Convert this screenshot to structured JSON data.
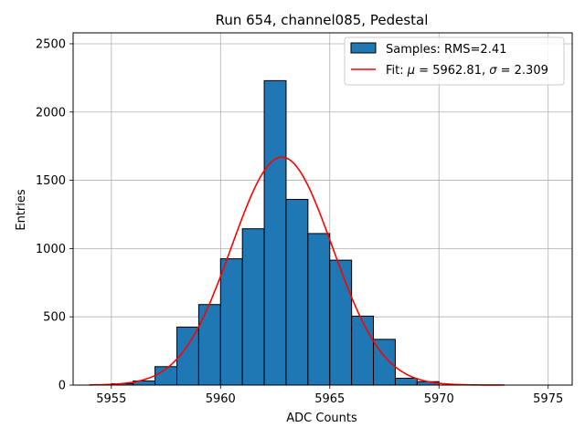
{
  "chart_data": {
    "type": "bar",
    "title": "Run 654, channel085, Pedestal",
    "xlabel": "ADC Counts",
    "ylabel": "Entries",
    "xlim": [
      5953.25,
      5976.1
    ],
    "ylim": [
      0,
      2580
    ],
    "xticks": [
      5955,
      5960,
      5965,
      5970,
      5975
    ],
    "yticks": [
      0,
      500,
      1000,
      1500,
      2000,
      2500
    ],
    "grid": true,
    "legend_position": "top-right",
    "histogram": {
      "name": "Samples: RMS=2.41",
      "color": "#1f77b4",
      "bin_edges": [
        5955,
        5956,
        5957,
        5958,
        5959,
        5960,
        5961,
        5962,
        5963,
        5964,
        5965,
        5966,
        5967,
        5968,
        5969,
        5970
      ],
      "counts": [
        10,
        30,
        135,
        425,
        590,
        925,
        1145,
        2230,
        1360,
        1110,
        915,
        505,
        335,
        50,
        25
      ]
    },
    "fit": {
      "name": "Fit: μ = 5962.81, σ = 2.309",
      "name_parts": {
        "prefix": "Fit: ",
        "mu_symbol": "μ",
        "mu_value": " = 5962.81, ",
        "sigma_symbol": "σ",
        "sigma_value": " = 2.309"
      },
      "color": "#ff0000",
      "mu": 5962.81,
      "sigma": 2.309,
      "amplitude": 1670,
      "x_range": [
        5954,
        5973
      ]
    }
  }
}
